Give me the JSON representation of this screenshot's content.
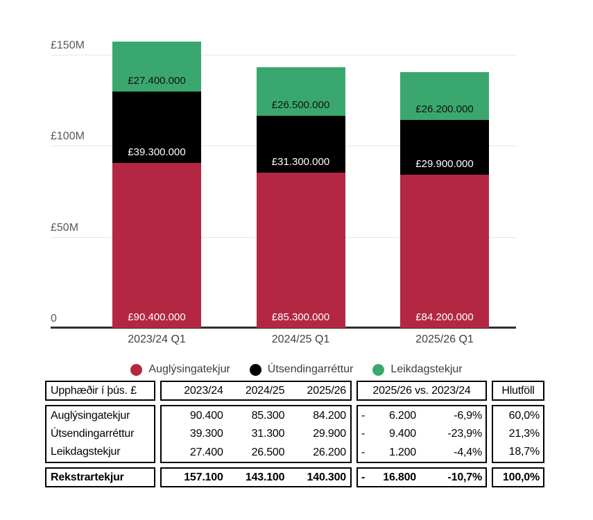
{
  "chart_data": {
    "type": "bar",
    "stacked": true,
    "title": "",
    "xlabel": "",
    "ylabel": "",
    "categories": [
      "2023/24 Q1",
      "2024/25 Q1",
      "2025/26 Q1"
    ],
    "series": [
      {
        "key": "auglysingatekjur",
        "name": "Auglýsingatekjur",
        "color": "#b32742",
        "label_color": "#ffffff",
        "values_millions": [
          90.4,
          85.3,
          84.2
        ],
        "bar_labels": [
          "£90.400.000",
          "£85.300.000",
          "£84.200.000"
        ]
      },
      {
        "key": "utsendingarrettur",
        "name": "Útsendingarréttur",
        "color": "#000000",
        "label_color": "#ffffff",
        "values_millions": [
          39.3,
          31.3,
          29.9
        ],
        "bar_labels": [
          "£39.300.000",
          "£31.300.000",
          "£29.900.000"
        ]
      },
      {
        "key": "leikdagstekjur",
        "name": "Leikdagstekjur",
        "color": "#3aa86e",
        "label_color": "#111111",
        "values_millions": [
          27.4,
          26.5,
          26.2
        ],
        "bar_labels": [
          "£27.400.000",
          "£26.500.000",
          "£26.200.000"
        ]
      }
    ],
    "totals_millions": [
      157.1,
      143.1,
      140.3
    ],
    "y_ticks": [
      {
        "label": "£150M",
        "value": 150
      },
      {
        "label": "£100M",
        "value": 100
      },
      {
        "label": "£50M",
        "value": 50
      },
      {
        "label": "0",
        "value": 0
      }
    ],
    "ylim": [
      0,
      180
    ],
    "grid": true,
    "legend_position": "bottom"
  },
  "table": {
    "header": {
      "unit_label": "Upphæðir í þús. £",
      "years": [
        "2023/24",
        "2024/25",
        "2025/26"
      ],
      "comparison": "2025/26 vs. 2023/24",
      "ratio": "Hlutföll"
    },
    "rows": [
      {
        "label": "Auglýsingatekjur",
        "values": [
          "90.400",
          "85.300",
          "84.200"
        ],
        "delta_sign": "-",
        "delta": "6.200",
        "delta_pct": "-6,9%",
        "ratio": "60,0%"
      },
      {
        "label": "Útsendingarréttur",
        "values": [
          "39.300",
          "31.300",
          "29.900"
        ],
        "delta_sign": "-",
        "delta": "9.400",
        "delta_pct": "-23,9%",
        "ratio": "21,3%"
      },
      {
        "label": "Leikdagstekjur",
        "values": [
          "27.400",
          "26.500",
          "26.200"
        ],
        "delta_sign": "-",
        "delta": "1.200",
        "delta_pct": "-4,4%",
        "ratio": "18,7%"
      }
    ],
    "total": {
      "label": "Rekstrartekjur",
      "values": [
        "157.100",
        "143.100",
        "140.300"
      ],
      "delta_sign": "-",
      "delta": "16.800",
      "delta_pct": "-10,7%",
      "ratio": "100,0%"
    }
  }
}
